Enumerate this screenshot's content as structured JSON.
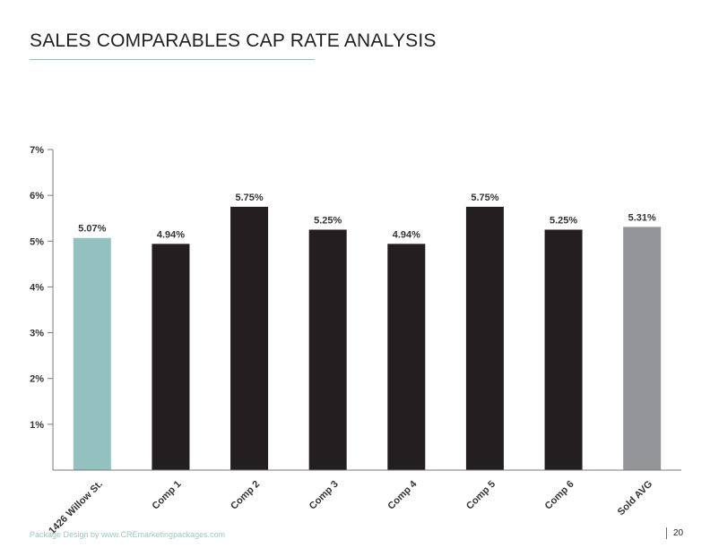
{
  "page": {
    "title": "SALES COMPARABLES CAP RATE ANALYSIS",
    "footer_credit": "Package Design by www.CREmarketingpackages.com",
    "page_number": "20"
  },
  "colors": {
    "subject": "#93c1bf",
    "comp": "#231f20",
    "average": "#939598",
    "accent": "#8fc1be"
  },
  "chart_data": {
    "type": "bar",
    "categories": [
      "1426 Willow St.",
      "Comp 1",
      "Comp 2",
      "Comp 3",
      "Comp 4",
      "Comp 5",
      "Comp 6",
      "Sold AVG"
    ],
    "values": [
      5.07,
      4.94,
      5.75,
      5.25,
      4.94,
      5.75,
      5.25,
      5.31
    ],
    "data_labels": [
      "5.07%",
      "4.94%",
      "5.75%",
      "5.25%",
      "4.94%",
      "5.75%",
      "5.25%",
      "5.31%"
    ],
    "bar_colors": [
      "subject",
      "comp",
      "comp",
      "comp",
      "comp",
      "comp",
      "comp",
      "average"
    ],
    "ylim": [
      0,
      7
    ],
    "y_ticks": [
      1,
      2,
      3,
      4,
      5,
      6,
      7
    ],
    "y_tick_labels": [
      "1%",
      "2%",
      "3%",
      "4%",
      "5%",
      "6%",
      "7%"
    ],
    "grid": false,
    "legend": false
  }
}
